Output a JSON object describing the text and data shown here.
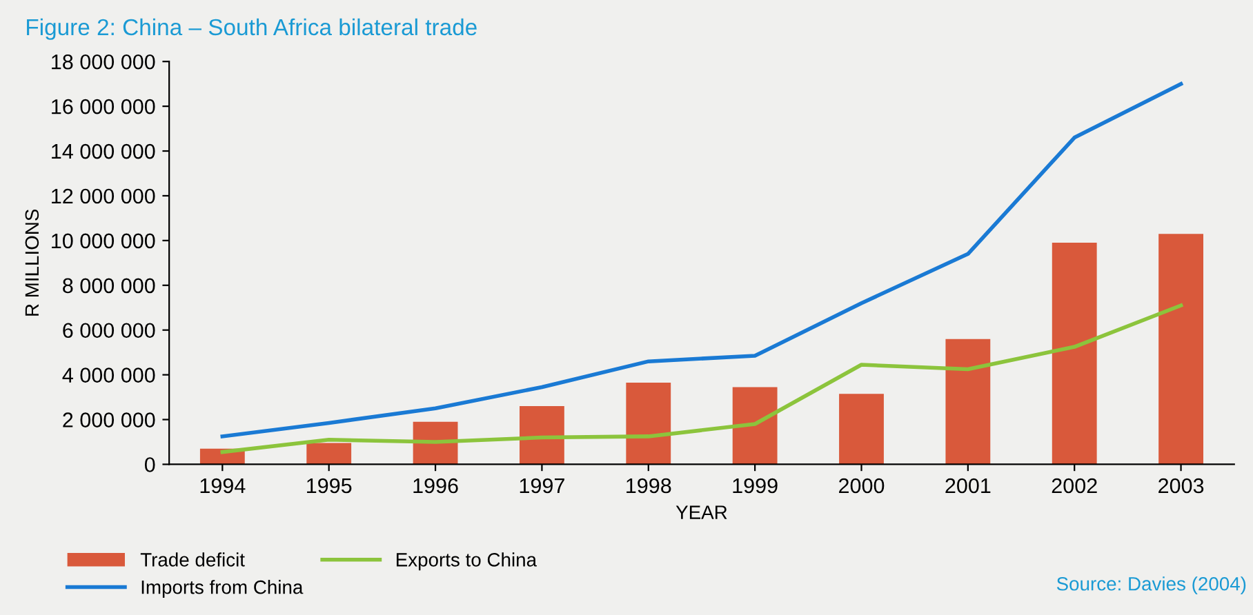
{
  "chart_data": {
    "type": "bar",
    "title": "Figure 2: China – South Africa bilateral trade",
    "xlabel": "YEAR",
    "ylabel": "R MILLIONS",
    "categories": [
      "1994",
      "1995",
      "1996",
      "1997",
      "1998",
      "1999",
      "2000",
      "2001",
      "2002",
      "2003"
    ],
    "series": [
      {
        "name": "Trade deficit",
        "color": "#d9593b",
        "values": [
          700000,
          950000,
          1900000,
          2600000,
          3650000,
          3450000,
          3150000,
          5600000,
          9900000,
          10300000
        ]
      },
      {
        "name": "Imports from China",
        "type": "line",
        "color": "#1a7ad4",
        "values": [
          1250000,
          1850000,
          2500000,
          3450000,
          4600000,
          4850000,
          7200000,
          9400000,
          14600000,
          17000000
        ]
      },
      {
        "name": "Exports to China",
        "type": "line",
        "color": "#8cc43c",
        "values": [
          550000,
          1100000,
          1000000,
          1200000,
          1250000,
          1800000,
          4450000,
          4250000,
          5250000,
          7100000
        ]
      }
    ],
    "ylim": [
      0,
      18000000
    ],
    "yticks": [
      {
        "value": 0,
        "label": "0"
      },
      {
        "value": 2000000,
        "label": "2 000 000"
      },
      {
        "value": 4000000,
        "label": "4 000 000"
      },
      {
        "value": 6000000,
        "label": "6 000 000"
      },
      {
        "value": 8000000,
        "label": "8 000 000"
      },
      {
        "value": 10000000,
        "label": "10 000 000"
      },
      {
        "value": 12000000,
        "label": "12 000 000"
      },
      {
        "value": 14000000,
        "label": "14 000 000"
      },
      {
        "value": 16000000,
        "label": "16 000 000"
      },
      {
        "value": 18000000,
        "label": "18 000 000"
      }
    ],
    "grid": false,
    "legend": "bottom left",
    "annotations": [
      "Source: Davies (2004)"
    ]
  }
}
